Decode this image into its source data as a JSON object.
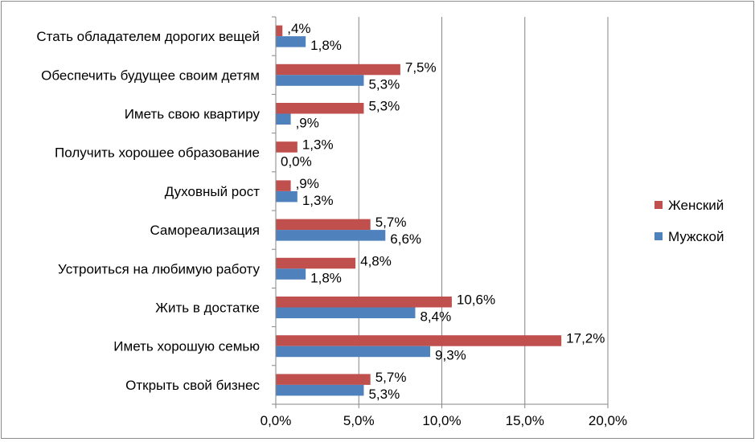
{
  "chart_data": {
    "type": "bar",
    "orientation": "horizontal",
    "categories": [
      "Стать обладателем дорогих вещей",
      "Обеспечить будущее своим детям",
      "Иметь свою квартиру",
      "Получить хорошее образование",
      "Духовный рост",
      "Самореализация",
      "Устроиться на любимую работу",
      "Жить в достатке",
      "Иметь хорошую семью",
      "Открыть свой бизнес"
    ],
    "series": [
      {
        "name": "Женский",
        "color": "#c0504d",
        "values": [
          0.4,
          7.5,
          5.3,
          1.3,
          0.9,
          5.7,
          4.8,
          10.6,
          17.2,
          5.7
        ],
        "labels": [
          ",4%",
          "7,5%",
          "5,3%",
          "1,3%",
          ",9%",
          "5,7%",
          "4,8%",
          "10,6%",
          "17,2%",
          "5,7%"
        ]
      },
      {
        "name": "Мужской",
        "color": "#4f81bd",
        "values": [
          1.8,
          5.3,
          0.9,
          0.0,
          1.3,
          6.6,
          1.8,
          8.4,
          9.3,
          5.3
        ],
        "labels": [
          "1,8%",
          "5,3%",
          ",9%",
          "0,0%",
          "1,3%",
          "6,6%",
          "1,8%",
          "8,4%",
          "9,3%",
          "5,3%"
        ]
      }
    ],
    "xlim": [
      0,
      20
    ],
    "xticks": [
      0,
      5,
      10,
      15,
      20
    ],
    "xtick_labels": [
      "0,0%",
      "5,0%",
      "10,0%",
      "15,0%",
      "20,0%"
    ],
    "grid": "vertical",
    "legend": "right"
  }
}
